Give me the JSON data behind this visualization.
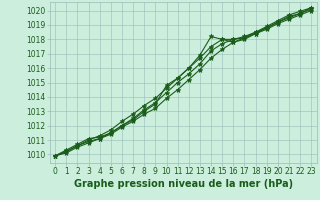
{
  "background_color": "#cceedd",
  "grid_color": "#99bbbb",
  "line_color": "#1a5c1a",
  "marker_color": "#1a5c1a",
  "text_color": "#1a5c1a",
  "xlabel": "Graphe pression niveau de la mer (hPa)",
  "xlim": [
    -0.5,
    23.5
  ],
  "ylim": [
    1009.4,
    1020.6
  ],
  "yticks": [
    1010,
    1011,
    1012,
    1013,
    1014,
    1015,
    1016,
    1017,
    1018,
    1019,
    1020
  ],
  "xticks": [
    0,
    1,
    2,
    3,
    4,
    5,
    6,
    7,
    8,
    9,
    10,
    11,
    12,
    13,
    14,
    15,
    16,
    17,
    18,
    19,
    20,
    21,
    22,
    23
  ],
  "series": [
    [
      1009.9,
      1010.3,
      1010.7,
      1011.1,
      1011.2,
      1011.5,
      1012.0,
      1012.4,
      1013.0,
      1013.5,
      1014.8,
      1015.3,
      1016.0,
      1016.9,
      1018.2,
      1018.0,
      1017.8,
      1018.0,
      1018.4,
      1018.8,
      1019.2,
      1019.5,
      1019.8,
      1020.1
    ],
    [
      1009.9,
      1010.2,
      1010.6,
      1010.9,
      1011.1,
      1011.4,
      1011.9,
      1012.3,
      1012.8,
      1013.2,
      1013.9,
      1014.5,
      1015.2,
      1015.9,
      1016.7,
      1017.3,
      1017.8,
      1018.1,
      1018.4,
      1018.7,
      1019.1,
      1019.4,
      1019.7,
      1020.0
    ],
    [
      1009.9,
      1010.1,
      1010.5,
      1010.8,
      1011.1,
      1011.5,
      1012.0,
      1012.5,
      1013.1,
      1013.6,
      1014.3,
      1015.0,
      1015.6,
      1016.3,
      1017.2,
      1017.7,
      1018.0,
      1018.2,
      1018.5,
      1018.8,
      1019.2,
      1019.6,
      1019.8,
      1020.2
    ],
    [
      1009.9,
      1010.2,
      1010.6,
      1011.0,
      1011.3,
      1011.7,
      1012.3,
      1012.8,
      1013.4,
      1013.9,
      1014.6,
      1015.3,
      1016.0,
      1016.7,
      1017.5,
      1018.0,
      1018.0,
      1018.1,
      1018.5,
      1018.9,
      1019.3,
      1019.7,
      1019.95,
      1020.2
    ]
  ],
  "marker": "*",
  "markersize": 3.5,
  "linewidth": 0.8,
  "xlabel_fontsize": 7,
  "tick_fontsize": 5.5
}
